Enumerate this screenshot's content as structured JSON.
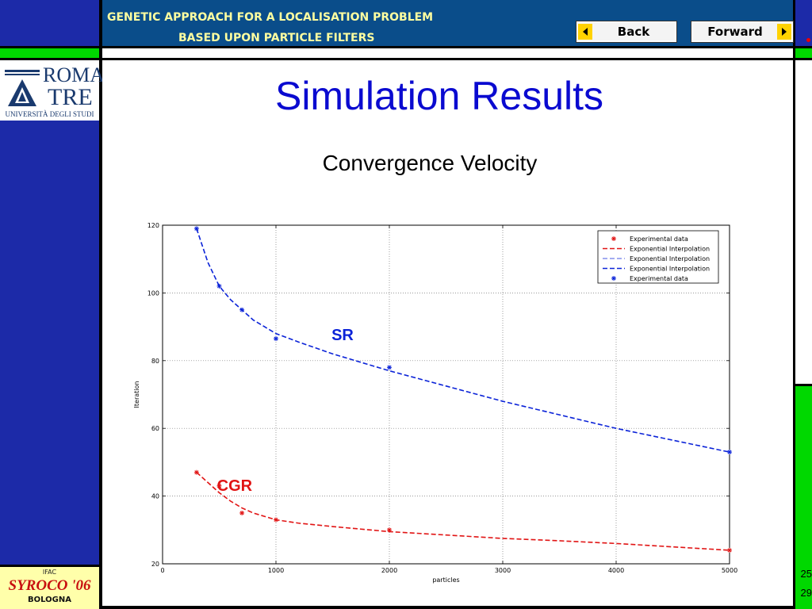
{
  "header": {
    "title_line1": "GENETIC APPROACH FOR A LOCALISATION PROBLEM",
    "title_line2": "BASED UPON PARTICLE FILTERS",
    "back_label": "Back",
    "forward_label": "Forward"
  },
  "logo": {
    "line1": "ROMA",
    "line2": "TRE",
    "line3": "UNIVERSITÀ DEGLI STUDI"
  },
  "conference_logo": {
    "top": "IFAC",
    "name": "SYROCO '06",
    "city": "BOLOGNA"
  },
  "slide": {
    "title": "Simulation Results",
    "subtitle": "Convergence Velocity"
  },
  "page_numbers": {
    "current": "25",
    "total": "29"
  },
  "colors": {
    "accent_blue": "#1c2aa8",
    "header_blue": "#0a4d8a",
    "green": "#00d800",
    "title_blue": "#0a0ad0",
    "sr": "#0b23d8",
    "cgr": "#e11414"
  },
  "chart_data": {
    "type": "line",
    "xlabel": "particles",
    "ylabel": "Iteration",
    "xlim": [
      0,
      5000
    ],
    "ylim": [
      20,
      120
    ],
    "xticks": [
      0,
      1000,
      2000,
      3000,
      4000,
      5000
    ],
    "yticks": [
      20,
      40,
      60,
      80,
      100,
      120
    ],
    "grid": true,
    "legend_position": "top-right",
    "legend": [
      {
        "label": "Experimental data",
        "style": "marker",
        "color": "#e11414"
      },
      {
        "label": "Exponential Interpolation",
        "style": "dashed",
        "color": "#e11414"
      },
      {
        "label": "Exponential Interpolation",
        "style": "dashed-thin",
        "color": "#0b23d8"
      },
      {
        "label": "Exponential Interpolation",
        "style": "dashed",
        "color": "#0b23d8"
      },
      {
        "label": "Experimental data",
        "style": "marker",
        "color": "#0b23d8"
      }
    ],
    "series": [
      {
        "name": "SR",
        "color": "#0b23d8",
        "experimental": {
          "x": [
            300,
            500,
            700,
            1000,
            2000,
            5000
          ],
          "y": [
            119,
            102,
            95,
            86.5,
            78,
            53
          ]
        },
        "interpolation": {
          "x": [
            300,
            400,
            500,
            600,
            700,
            800,
            900,
            1000,
            1200,
            1500,
            2000,
            2500,
            3000,
            3500,
            4000,
            4500,
            5000
          ],
          "y": [
            119,
            109,
            102,
            98,
            95,
            92,
            90,
            88,
            85.5,
            82,
            77,
            72.5,
            68,
            64,
            60,
            56.5,
            53
          ]
        }
      },
      {
        "name": "CGR",
        "color": "#e11414",
        "experimental": {
          "x": [
            300,
            500,
            700,
            1000,
            2000,
            5000
          ],
          "y": [
            47,
            43,
            35,
            33,
            30,
            24
          ]
        },
        "interpolation": {
          "x": [
            300,
            400,
            500,
            600,
            700,
            800,
            900,
            1000,
            1200,
            1500,
            2000,
            2500,
            3000,
            3500,
            4000,
            4500,
            5000
          ],
          "y": [
            47,
            44,
            41,
            38.5,
            36.5,
            35,
            34,
            33,
            32,
            31,
            29.5,
            28.5,
            27.5,
            26.8,
            26,
            25,
            24
          ]
        }
      }
    ]
  }
}
